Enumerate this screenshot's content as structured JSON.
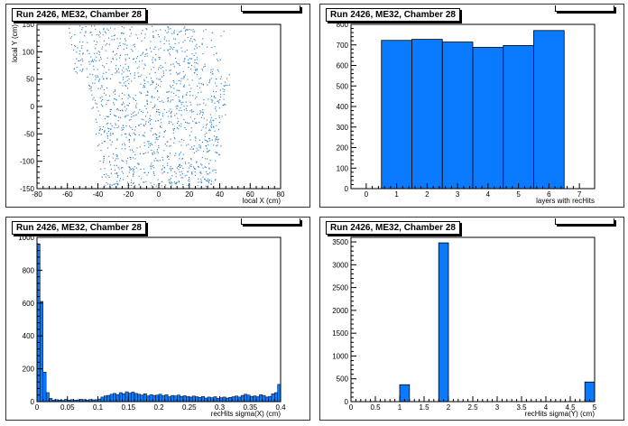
{
  "pads": [
    {
      "title": "Run 2426, ME32, Chamber 28",
      "chart_data": {
        "type": "scatter",
        "xlabel": "local X (cm)",
        "ylabel": "local Y (cm)",
        "xlim": [
          -80,
          80
        ],
        "ylim": [
          -150,
          150
        ],
        "xticks": [
          -80,
          -60,
          -40,
          -20,
          0,
          20,
          40,
          60,
          80
        ],
        "yticks": [
          -150,
          -100,
          -50,
          0,
          50,
          100,
          150
        ],
        "color": "#1f77c8",
        "shape": {
          "top_halfwidth": 52,
          "bottom_halfwidth": 37,
          "ymin": -145,
          "ymax": 148
        }
      }
    },
    {
      "title": "Run 2426, ME32, Chamber 28",
      "chart_data": {
        "type": "bar",
        "xlabel": "layers with recHits",
        "ylabel": "",
        "xlim": [
          -0.5,
          7.5
        ],
        "ylim": [
          0,
          800
        ],
        "xticks": [
          0,
          1,
          2,
          3,
          4,
          5,
          6,
          7
        ],
        "yticks": [
          0,
          100,
          200,
          300,
          400,
          500,
          600,
          700,
          800
        ],
        "bin_width": 1,
        "bin_centers": [
          1,
          2,
          3,
          4,
          5,
          6
        ],
        "values": [
          722,
          727,
          714,
          688,
          697,
          770
        ],
        "color": "#0a7bff"
      }
    },
    {
      "title": "Run 2426, ME32, Chamber 28",
      "chart_data": {
        "type": "bar",
        "xlabel": "recHits sigma(X) (cm)",
        "ylabel": "",
        "xlim": [
          0,
          0.4
        ],
        "ylim": [
          0,
          1000
        ],
        "xticks": [
          0,
          0.05,
          0.1,
          0.15,
          0.2,
          0.25,
          0.3,
          0.35,
          0.4
        ],
        "yticks": [
          0,
          200,
          400,
          600,
          800,
          1000
        ],
        "bin_width": 0.005,
        "values": [
          960,
          610,
          180,
          55,
          20,
          10,
          12,
          10,
          8,
          14,
          10,
          12,
          9,
          11,
          14,
          12,
          10,
          13,
          11,
          12,
          16,
          28,
          35,
          38,
          45,
          50,
          42,
          55,
          48,
          60,
          52,
          58,
          50,
          45,
          40,
          48,
          35,
          42,
          38,
          40,
          45,
          36,
          42,
          30,
          38,
          35,
          40,
          32,
          36,
          30,
          28,
          34,
          30,
          26,
          32,
          22,
          28,
          24,
          30,
          20,
          24,
          28,
          22,
          26,
          30,
          34,
          28,
          38,
          45,
          40,
          32,
          35,
          30,
          42,
          38,
          28,
          32,
          48,
          55,
          105
        ],
        "color": "#0a7bff"
      }
    },
    {
      "title": "Run 2426, ME32, Chamber 28",
      "chart_data": {
        "type": "bar",
        "xlabel": "recHits sigma(Y) (cm)",
        "ylabel": "",
        "xlim": [
          0,
          5
        ],
        "ylim": [
          0,
          3600
        ],
        "xticks": [
          0,
          0.5,
          1,
          1.5,
          2,
          2.5,
          3,
          3.5,
          4,
          4.5,
          5
        ],
        "yticks": [
          0,
          500,
          1000,
          1500,
          2000,
          2500,
          3000,
          3500
        ],
        "bin_width": 0.2,
        "bin_lefts": [
          1.0,
          1.8,
          4.8
        ],
        "values": [
          370,
          3480,
          430
        ],
        "color": "#0a7bff"
      }
    }
  ]
}
